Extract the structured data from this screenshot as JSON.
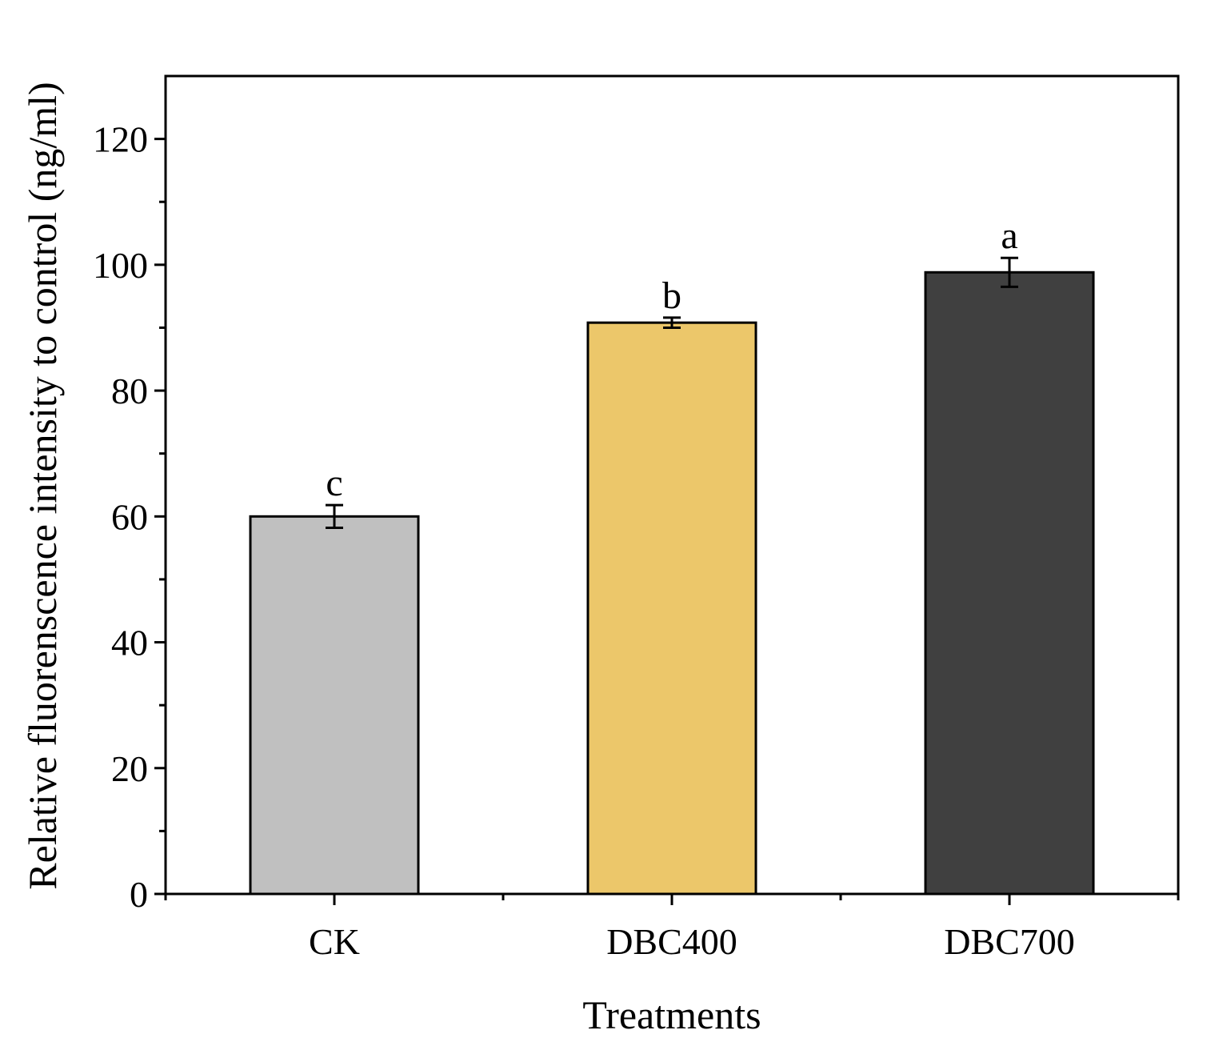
{
  "chart_data": {
    "type": "bar",
    "title": "",
    "xlabel": "Treatments",
    "ylabel": "Relative fluorenscence intensity to control (ng/ml)",
    "ylim": [
      0,
      130
    ],
    "yticks": [
      0,
      20,
      40,
      60,
      80,
      100,
      120
    ],
    "yticks_minor": [
      10,
      30,
      50,
      70,
      90,
      110
    ],
    "categories": [
      "CK",
      "DBC400",
      "DBC700"
    ],
    "values": [
      60,
      90.8,
      98.8
    ],
    "errors": [
      1.8,
      0.8,
      2.3
    ],
    "significance": [
      "c",
      "b",
      "a"
    ],
    "colors": [
      "#c0c0c0",
      "#ecc76a",
      "#404040"
    ],
    "grid": false,
    "legend": "none"
  }
}
